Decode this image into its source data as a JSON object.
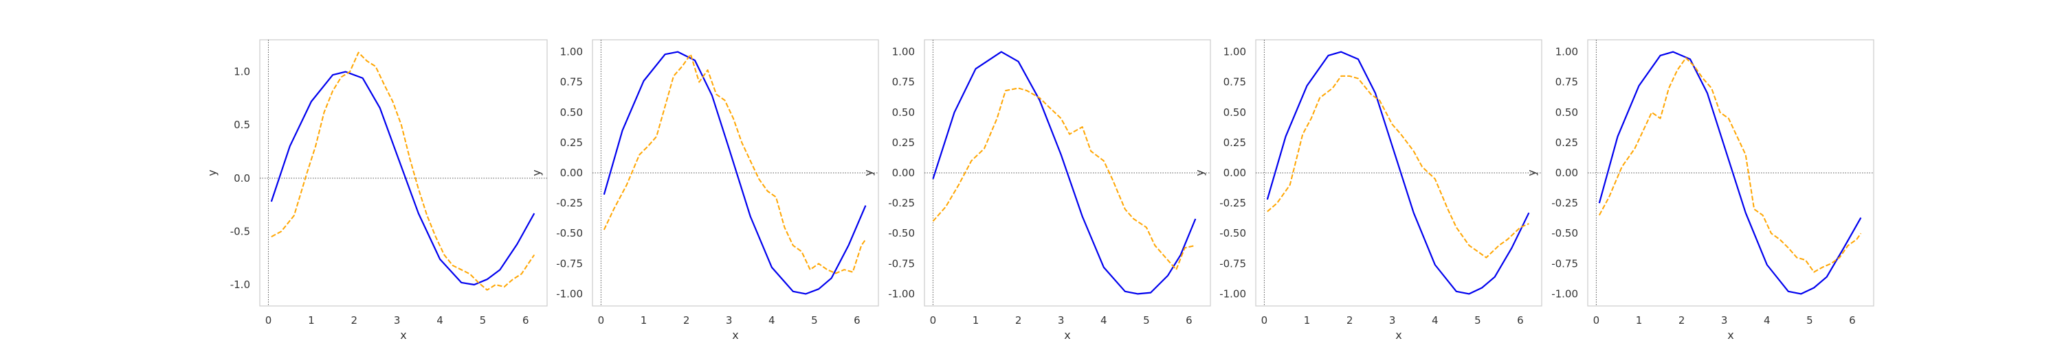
{
  "chart_data": [
    {
      "type": "line",
      "xlabel": "x",
      "ylabel": "y",
      "xlim": [
        -0.2,
        6.5
      ],
      "ylim": [
        -1.2,
        1.3
      ],
      "xticks": [
        "0",
        "1",
        "2",
        "3",
        "4",
        "5",
        "6"
      ],
      "yticks": [
        "-1.0",
        "-0.5",
        "0.0",
        "0.5",
        "1.0"
      ],
      "grid": false,
      "reference_lines": [
        "y = 0 (dotted)",
        "x = 0 (dotted)"
      ],
      "series": [
        {
          "style": "solid",
          "color": "#0000ee",
          "x": [
            0.07,
            0.5,
            1.0,
            1.5,
            1.8,
            2.2,
            2.6,
            3.0,
            3.5,
            4.0,
            4.5,
            4.8,
            5.1,
            5.4,
            5.8,
            6.2
          ],
          "y": [
            -0.22,
            0.3,
            0.72,
            0.97,
            1.0,
            0.94,
            0.66,
            0.22,
            -0.33,
            -0.76,
            -0.98,
            -1.0,
            -0.95,
            -0.86,
            -0.62,
            -0.33
          ]
        },
        {
          "style": "dashed",
          "color": "#ffa500",
          "x": [
            0.07,
            0.3,
            0.6,
            0.9,
            1.1,
            1.3,
            1.5,
            1.7,
            1.9,
            2.1,
            2.3,
            2.5,
            2.7,
            2.9,
            3.1,
            3.3,
            3.5,
            3.7,
            3.9,
            4.1,
            4.3,
            4.5,
            4.7,
            4.9,
            5.1,
            5.3,
            5.5,
            5.7,
            5.9,
            6.1,
            6.2
          ],
          "y": [
            -0.55,
            -0.5,
            -0.35,
            0.05,
            0.3,
            0.62,
            0.82,
            0.95,
            1.0,
            1.18,
            1.1,
            1.05,
            0.88,
            0.72,
            0.5,
            0.18,
            -0.1,
            -0.35,
            -0.55,
            -0.72,
            -0.82,
            -0.86,
            -0.9,
            -0.98,
            -1.05,
            -1.0,
            -1.02,
            -0.95,
            -0.9,
            -0.78,
            -0.72
          ]
        }
      ]
    },
    {
      "type": "line",
      "xlabel": "x",
      "ylabel": "y",
      "xlim": [
        -0.2,
        6.5
      ],
      "ylim": [
        -1.1,
        1.1
      ],
      "xticks": [
        "0",
        "1",
        "2",
        "3",
        "4",
        "5",
        "6"
      ],
      "yticks": [
        "-1.00",
        "-0.75",
        "-0.50",
        "-0.25",
        "0.00",
        "0.25",
        "0.50",
        "0.75",
        "1.00"
      ],
      "grid": false,
      "reference_lines": [
        "y = 0 (dotted)",
        "x = 0 (dotted)"
      ],
      "series": [
        {
          "style": "solid",
          "color": "#0000ee",
          "x": [
            0.07,
            0.5,
            1.0,
            1.5,
            1.8,
            2.2,
            2.6,
            3.0,
            3.5,
            4.0,
            4.5,
            4.8,
            5.1,
            5.4,
            5.8,
            6.2
          ],
          "y": [
            -0.18,
            0.35,
            0.76,
            0.98,
            1.0,
            0.93,
            0.64,
            0.2,
            -0.36,
            -0.78,
            -0.98,
            -1.0,
            -0.96,
            -0.87,
            -0.6,
            -0.27
          ]
        },
        {
          "style": "dashed",
          "color": "#ffa500",
          "x": [
            0.07,
            0.3,
            0.6,
            0.9,
            1.1,
            1.3,
            1.5,
            1.7,
            1.9,
            2.1,
            2.3,
            2.5,
            2.7,
            2.9,
            3.1,
            3.3,
            3.5,
            3.7,
            3.9,
            4.1,
            4.3,
            4.5,
            4.7,
            4.9,
            5.1,
            5.3,
            5.5,
            5.7,
            5.9,
            6.1,
            6.2
          ],
          "y": [
            -0.47,
            -0.3,
            -0.1,
            0.15,
            0.22,
            0.3,
            0.55,
            0.8,
            0.88,
            0.98,
            0.75,
            0.85,
            0.65,
            0.6,
            0.45,
            0.25,
            0.1,
            -0.05,
            -0.15,
            -0.2,
            -0.45,
            -0.6,
            -0.65,
            -0.8,
            -0.75,
            -0.8,
            -0.83,
            -0.8,
            -0.82,
            -0.6,
            -0.55
          ]
        }
      ]
    },
    {
      "type": "line",
      "xlabel": "x",
      "ylabel": "y",
      "xlim": [
        -0.2,
        6.5
      ],
      "ylim": [
        -1.1,
        1.1
      ],
      "xticks": [
        "0",
        "1",
        "2",
        "3",
        "4",
        "5",
        "6"
      ],
      "yticks": [
        "-1.00",
        "-0.75",
        "-0.50",
        "-0.25",
        "0.00",
        "0.25",
        "0.50",
        "0.75",
        "1.00"
      ],
      "grid": false,
      "reference_lines": [
        "y = 0 (dotted)",
        "x = 0 (dotted)"
      ],
      "series": [
        {
          "style": "solid",
          "color": "#0000ee",
          "x": [
            0.0,
            0.5,
            1.0,
            1.6,
            2.0,
            2.5,
            3.0,
            3.5,
            4.0,
            4.5,
            4.8,
            5.1,
            5.5,
            5.8,
            6.15
          ],
          "y": [
            -0.05,
            0.5,
            0.86,
            1.0,
            0.92,
            0.6,
            0.15,
            -0.36,
            -0.78,
            -0.98,
            -1.0,
            -0.99,
            -0.85,
            -0.68,
            -0.38
          ]
        },
        {
          "style": "dashed",
          "color": "#ffa500",
          "x": [
            0.0,
            0.3,
            0.6,
            0.9,
            1.2,
            1.5,
            1.7,
            2.0,
            2.2,
            2.5,
            2.7,
            3.0,
            3.2,
            3.5,
            3.7,
            4.0,
            4.2,
            4.5,
            4.7,
            5.0,
            5.2,
            5.5,
            5.7,
            5.9,
            6.15
          ],
          "y": [
            -0.4,
            -0.28,
            -0.1,
            0.1,
            0.2,
            0.45,
            0.68,
            0.7,
            0.68,
            0.62,
            0.55,
            0.45,
            0.32,
            0.38,
            0.18,
            0.1,
            -0.05,
            -0.3,
            -0.38,
            -0.45,
            -0.6,
            -0.72,
            -0.8,
            -0.62,
            -0.6
          ]
        }
      ]
    },
    {
      "type": "line",
      "xlabel": "x",
      "ylabel": "y",
      "xlim": [
        -0.2,
        6.5
      ],
      "ylim": [
        -1.1,
        1.1
      ],
      "xticks": [
        "0",
        "1",
        "2",
        "3",
        "4",
        "5",
        "6"
      ],
      "yticks": [
        "-1.00",
        "-0.75",
        "-0.50",
        "-0.25",
        "0.00",
        "0.25",
        "0.50",
        "0.75",
        "1.00"
      ],
      "grid": false,
      "reference_lines": [
        "y = 0 (dotted)",
        "x = 0 (dotted)"
      ],
      "series": [
        {
          "style": "solid",
          "color": "#0000ee",
          "x": [
            0.07,
            0.5,
            1.0,
            1.5,
            1.8,
            2.2,
            2.6,
            3.0,
            3.5,
            4.0,
            4.5,
            4.8,
            5.1,
            5.4,
            5.8,
            6.2
          ],
          "y": [
            -0.22,
            0.3,
            0.72,
            0.97,
            1.0,
            0.94,
            0.66,
            0.22,
            -0.33,
            -0.76,
            -0.98,
            -1.0,
            -0.95,
            -0.86,
            -0.62,
            -0.33
          ]
        },
        {
          "style": "dashed",
          "color": "#ffa500",
          "x": [
            0.07,
            0.3,
            0.6,
            0.9,
            1.1,
            1.3,
            1.6,
            1.8,
            2.0,
            2.2,
            2.5,
            2.7,
            3.0,
            3.2,
            3.5,
            3.7,
            4.0,
            4.3,
            4.5,
            4.8,
            5.0,
            5.2,
            5.5,
            5.7,
            6.0,
            6.2
          ],
          "y": [
            -0.32,
            -0.25,
            -0.1,
            0.32,
            0.45,
            0.62,
            0.7,
            0.8,
            0.8,
            0.78,
            0.65,
            0.6,
            0.4,
            0.32,
            0.18,
            0.05,
            -0.05,
            -0.3,
            -0.45,
            -0.6,
            -0.65,
            -0.7,
            -0.6,
            -0.55,
            -0.45,
            -0.42
          ]
        }
      ]
    },
    {
      "type": "line",
      "xlabel": "x",
      "ylabel": "y",
      "xlim": [
        -0.2,
        6.5
      ],
      "ylim": [
        -1.1,
        1.1
      ],
      "xticks": [
        "0",
        "1",
        "2",
        "3",
        "4",
        "5",
        "6"
      ],
      "yticks": [
        "-1.00",
        "-0.75",
        "-0.50",
        "-0.25",
        "0.00",
        "0.25",
        "0.50",
        "0.75",
        "1.00"
      ],
      "grid": false,
      "reference_lines": [
        "y = 0 (dotted)",
        "x = 0 (dotted)"
      ],
      "series": [
        {
          "style": "solid",
          "color": "#0000ee",
          "x": [
            0.07,
            0.5,
            1.0,
            1.5,
            1.8,
            2.2,
            2.6,
            3.0,
            3.5,
            4.0,
            4.5,
            4.8,
            5.1,
            5.4,
            5.8,
            6.2
          ],
          "y": [
            -0.25,
            0.3,
            0.72,
            0.97,
            1.0,
            0.94,
            0.66,
            0.22,
            -0.33,
            -0.76,
            -0.98,
            -1.0,
            -0.95,
            -0.86,
            -0.62,
            -0.37
          ]
        },
        {
          "style": "dashed",
          "color": "#ffa500",
          "x": [
            0.07,
            0.3,
            0.6,
            0.9,
            1.1,
            1.3,
            1.5,
            1.7,
            1.9,
            2.1,
            2.3,
            2.5,
            2.7,
            2.9,
            3.1,
            3.3,
            3.5,
            3.7,
            3.9,
            4.1,
            4.3,
            4.5,
            4.7,
            4.9,
            5.1,
            5.3,
            5.5,
            5.7,
            5.9,
            6.1,
            6.2
          ],
          "y": [
            -0.35,
            -0.2,
            0.05,
            0.2,
            0.35,
            0.5,
            0.45,
            0.7,
            0.85,
            0.95,
            0.88,
            0.78,
            0.7,
            0.5,
            0.45,
            0.3,
            0.15,
            -0.3,
            -0.35,
            -0.5,
            -0.55,
            -0.62,
            -0.7,
            -0.72,
            -0.82,
            -0.78,
            -0.75,
            -0.7,
            -0.6,
            -0.55,
            -0.5
          ]
        }
      ]
    }
  ]
}
